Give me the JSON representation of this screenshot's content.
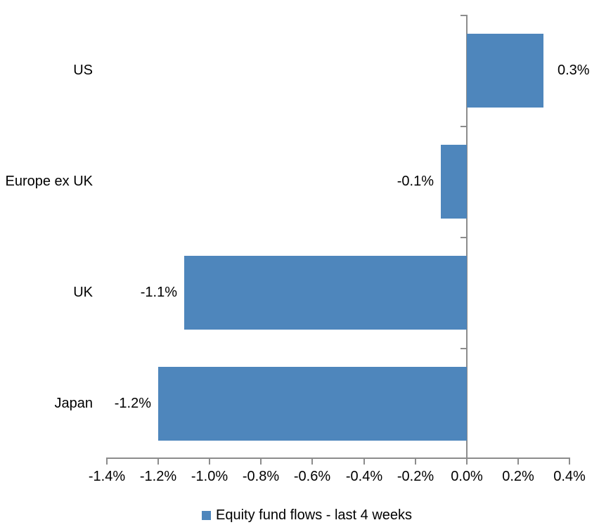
{
  "chart_data": {
    "type": "bar",
    "orientation": "horizontal",
    "title": "",
    "xlabel": "",
    "ylabel": "",
    "categories": [
      "US",
      "Europe ex UK",
      "UK",
      "Japan"
    ],
    "values": [
      0.3,
      -0.1,
      -1.1,
      -1.2
    ],
    "data_labels": [
      "0.3%",
      "-0.1%",
      "-1.1%",
      "-1.2%"
    ],
    "legend": "Equity fund flows - last 4 weeks",
    "legend_position": "bottom",
    "xlim": [
      -1.4,
      0.4
    ],
    "x_tick_interval": 0.2,
    "x_tick_labels": [
      "-1.4%",
      "-1.2%",
      "-1.0%",
      "-0.8%",
      "-0.6%",
      "-0.4%",
      "-0.2%",
      "0.0%",
      "0.2%",
      "0.4%"
    ],
    "grid": false,
    "bar_color": "#4E86BC",
    "axis_color": "#8C8C8C",
    "text_color": "#000000"
  }
}
